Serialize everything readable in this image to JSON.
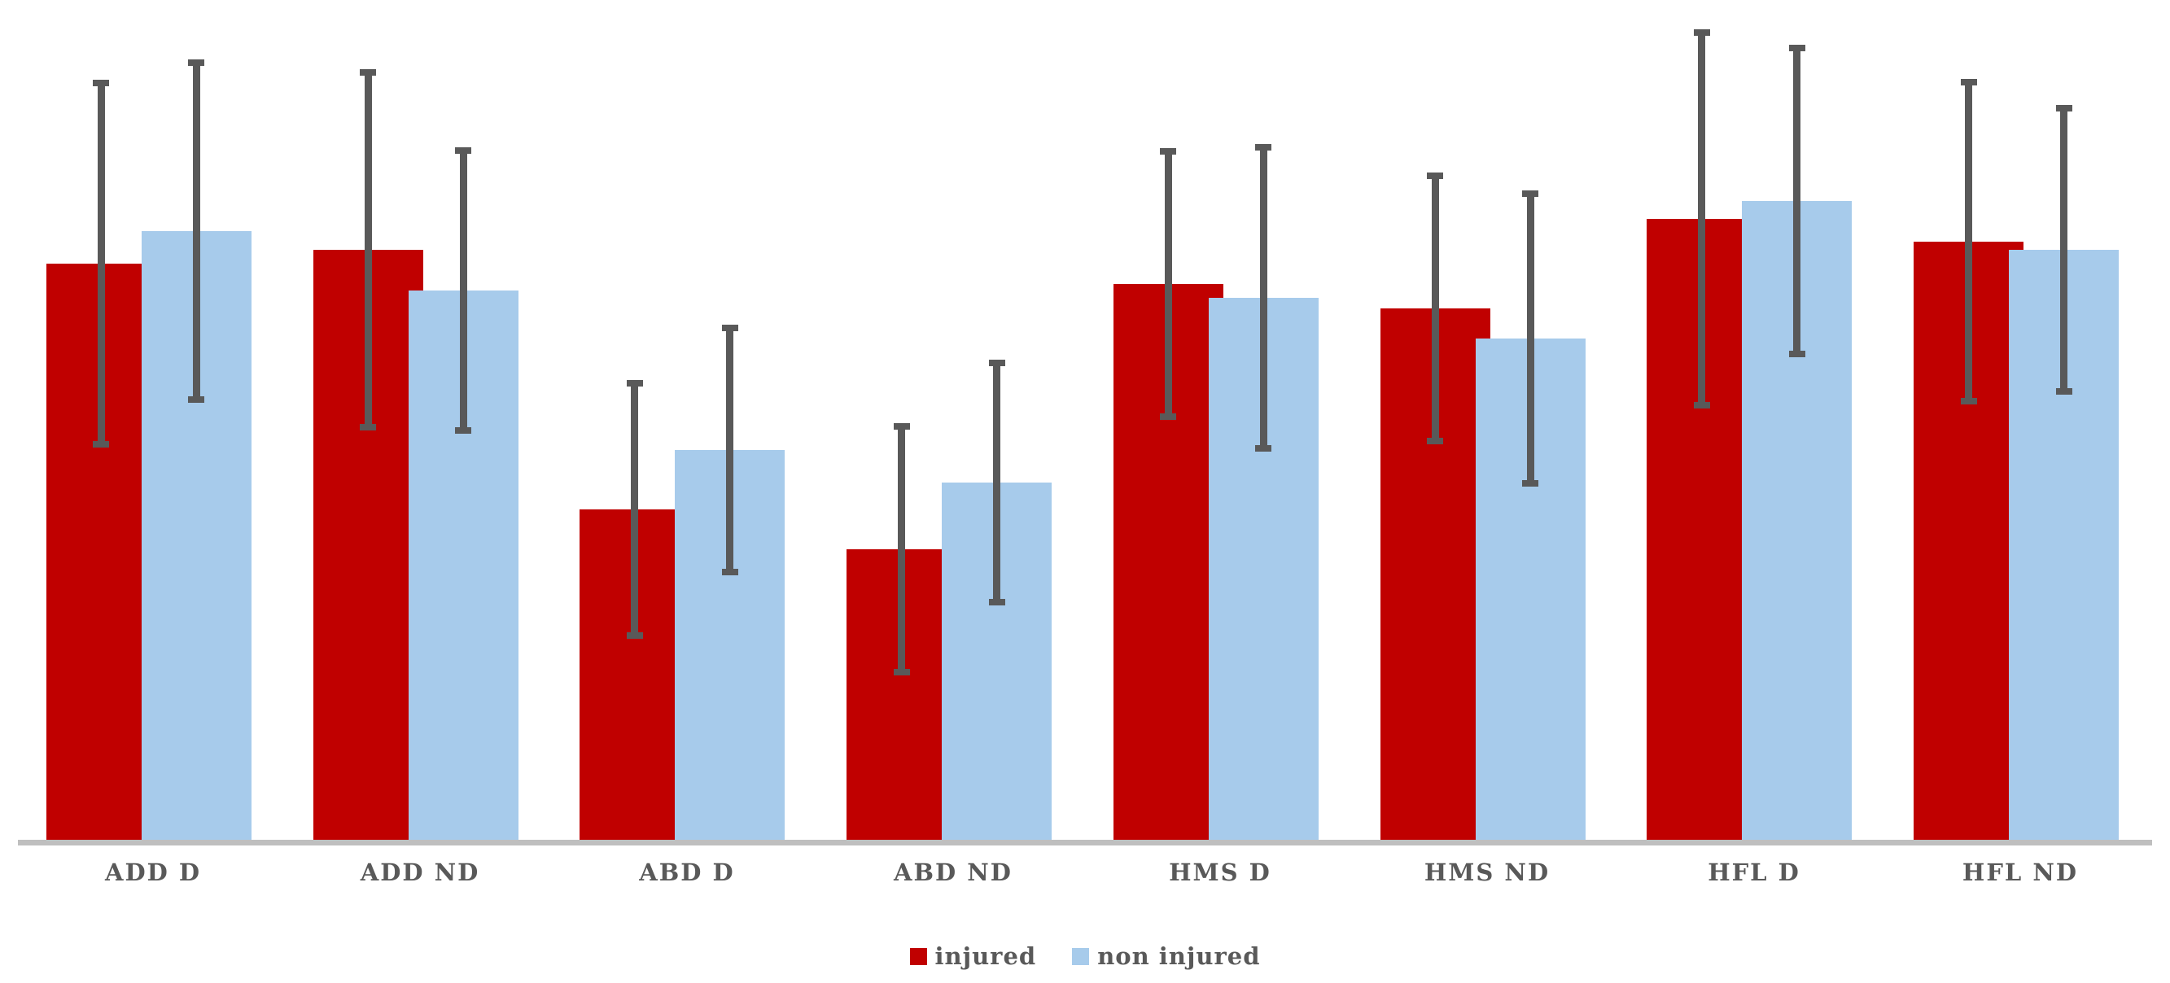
{
  "chart_data": {
    "type": "bar",
    "title": "",
    "xlabel": "",
    "ylabel": "",
    "note": "no y-axis shown; values are percent of plot height (baseline 0 to 100)",
    "categories": [
      "ADD D",
      "ADD ND",
      "ABD D",
      "ABD ND",
      "HMS D",
      "HMS ND",
      "HFL D",
      "HFL ND"
    ],
    "series": [
      {
        "name": "injured",
        "color": "#C00000",
        "values": [
          68.6,
          70.3,
          39.3,
          34.6,
          66.2,
          63.3,
          73.9,
          71.2
        ],
        "errors": [
          21.9,
          21.5,
          15.4,
          15.0,
          16.2,
          16.2,
          22.6,
          19.4
        ]
      },
      {
        "name": "non injured",
        "color": "#A7CBEB",
        "values": [
          72.5,
          65.4,
          46.4,
          42.5,
          64.5,
          59.7,
          76.1,
          70.3
        ],
        "errors": [
          20.4,
          17.1,
          14.9,
          14.6,
          18.3,
          17.6,
          18.6,
          17.2
        ]
      }
    ],
    "error_bars": true,
    "error_bar_color": "#595959",
    "axis_line_color": "#BFBFBF",
    "category_label_color": "#595959",
    "legend_position": "bottom-center",
    "grid": false,
    "background": "#FFFFFF",
    "ylim": [
      0,
      100
    ]
  },
  "legend": {
    "items": [
      {
        "label": "injured",
        "color": "#C00000"
      },
      {
        "label": "non injured",
        "color": "#A7CBEB"
      }
    ]
  }
}
